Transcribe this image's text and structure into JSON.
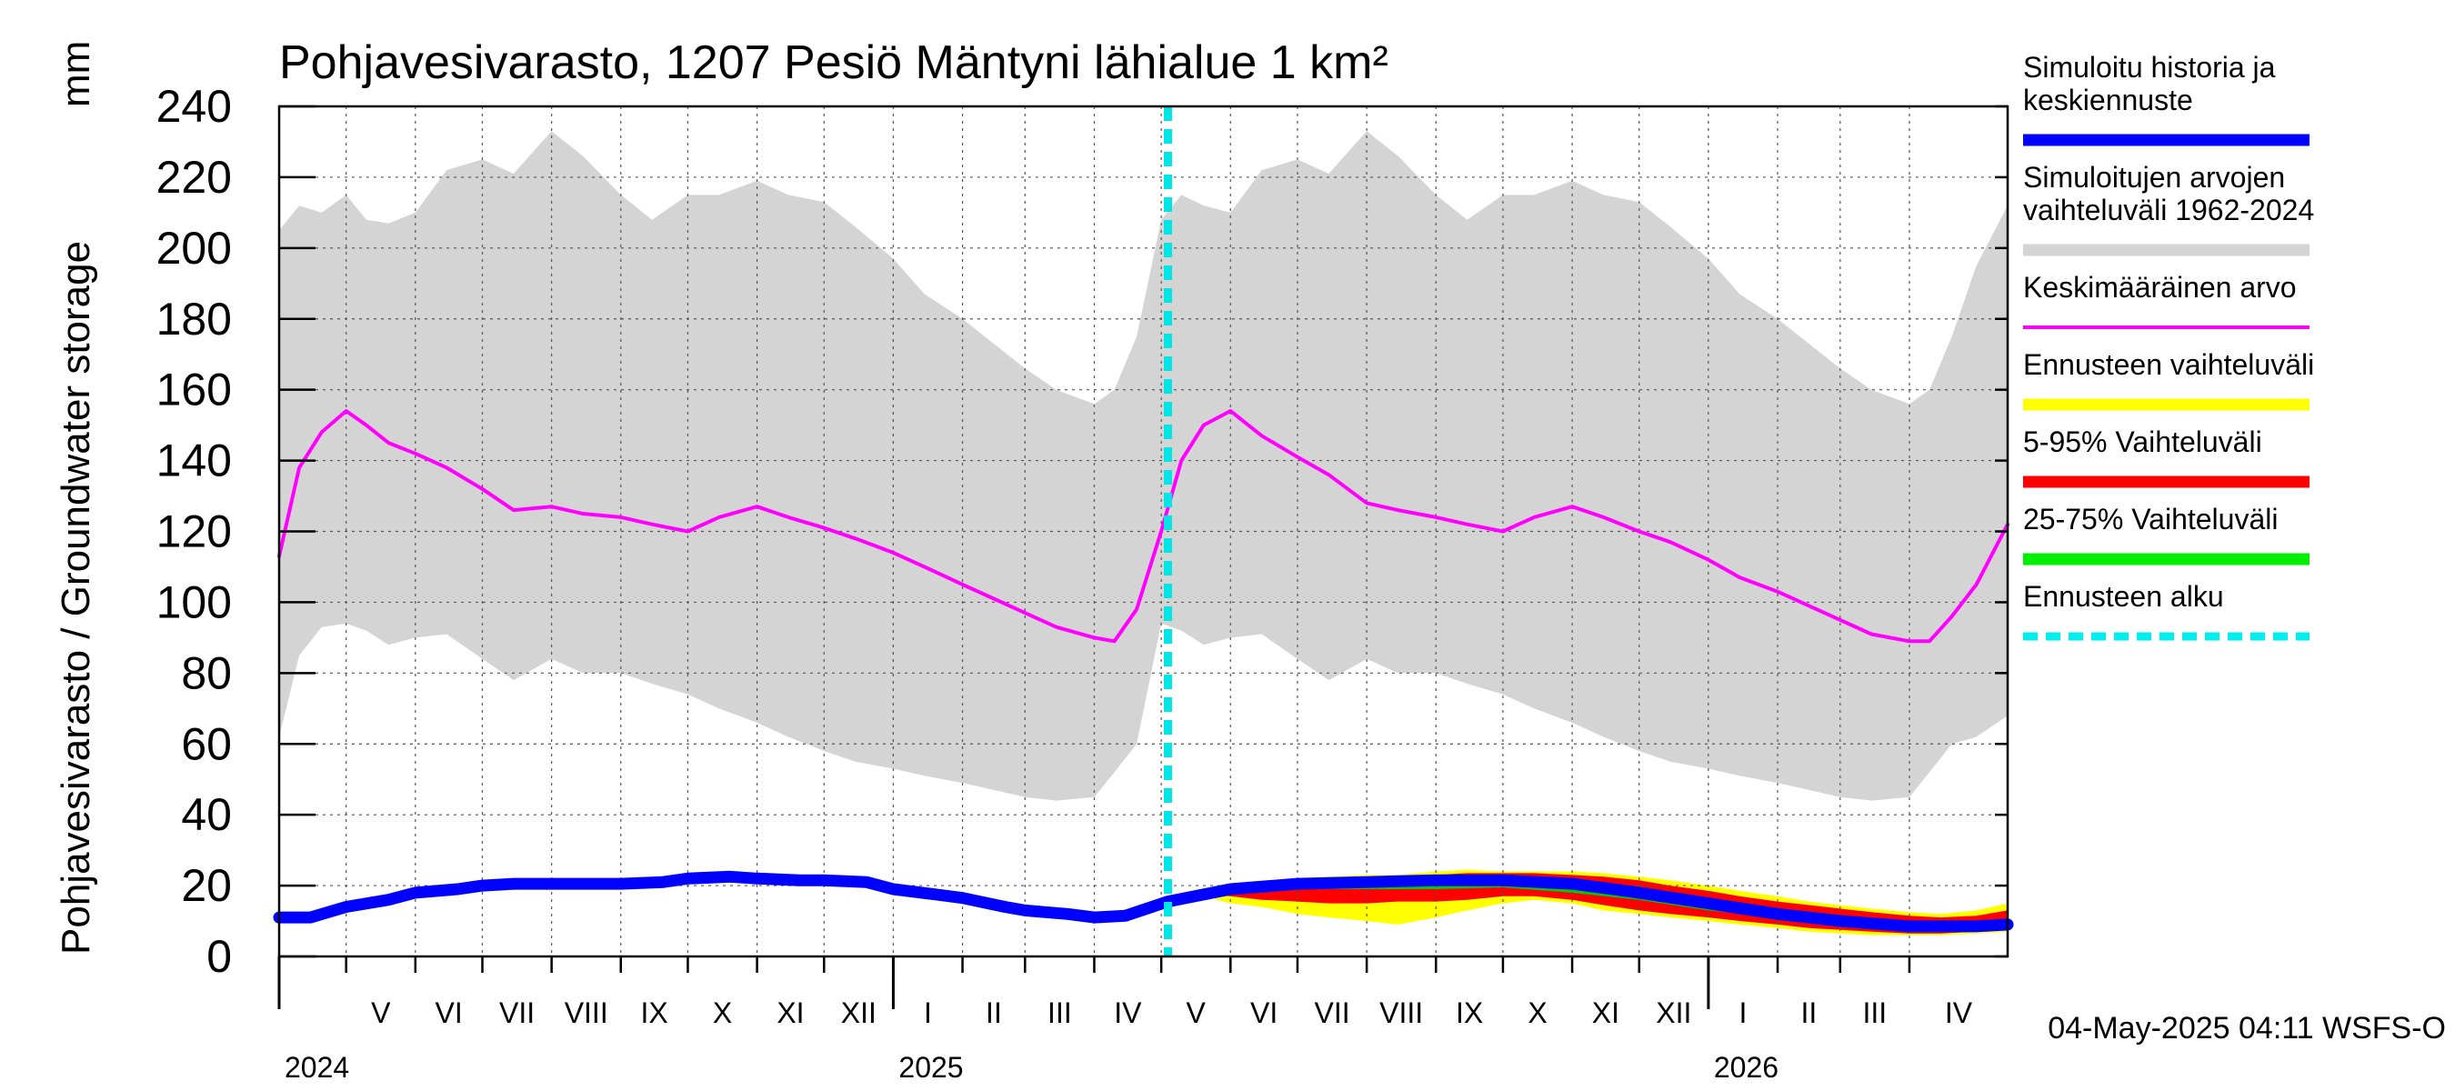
{
  "chart_data": {
    "type": "area",
    "title": "Pohjavesivarasto, 1207 Pesiö Mäntyni lähialue 1 km²",
    "ylabel": "Pohjavesivarasto / Groundwater storage",
    "yunit": "mm",
    "ylim": [
      0,
      240
    ],
    "yticks": [
      0,
      20,
      40,
      60,
      80,
      100,
      120,
      140,
      160,
      180,
      200,
      220,
      240
    ],
    "xlim": [
      "2024-04-01",
      "2026-05-15"
    ],
    "grid": true,
    "legend_position": "right",
    "month_labels": [
      {
        "label": "V",
        "date": "2024-05-01"
      },
      {
        "label": "VI",
        "date": "2024-06-01"
      },
      {
        "label": "VII",
        "date": "2024-07-01"
      },
      {
        "label": "VIII",
        "date": "2024-08-01"
      },
      {
        "label": "IX",
        "date": "2024-09-01"
      },
      {
        "label": "X",
        "date": "2024-10-01"
      },
      {
        "label": "XI",
        "date": "2024-11-01"
      },
      {
        "label": "XII",
        "date": "2024-12-01"
      },
      {
        "label": "I",
        "date": "2025-01-01"
      },
      {
        "label": "II",
        "date": "2025-02-01"
      },
      {
        "label": "III",
        "date": "2025-03-01"
      },
      {
        "label": "IV",
        "date": "2025-04-01"
      },
      {
        "label": "V",
        "date": "2025-05-01"
      },
      {
        "label": "VI",
        "date": "2025-06-01"
      },
      {
        "label": "VII",
        "date": "2025-07-01"
      },
      {
        "label": "VIII",
        "date": "2025-08-01"
      },
      {
        "label": "IX",
        "date": "2025-09-01"
      },
      {
        "label": "X",
        "date": "2025-10-01"
      },
      {
        "label": "XI",
        "date": "2025-11-01"
      },
      {
        "label": "XII",
        "date": "2025-12-01"
      },
      {
        "label": "I",
        "date": "2026-01-01"
      },
      {
        "label": "II",
        "date": "2026-02-01"
      },
      {
        "label": "III",
        "date": "2026-03-01"
      },
      {
        "label": "IV",
        "date": "2026-04-01"
      }
    ],
    "year_labels": [
      {
        "label": "2024",
        "date": "2024-04-01"
      },
      {
        "label": "2025",
        "date": "2025-01-01"
      },
      {
        "label": "2026",
        "date": "2026-01-01"
      }
    ],
    "forecast_start": "2025-05-04",
    "series": [
      {
        "name": "Simuloitujen arvojen vaihteluväli 1962-2024",
        "kind": "band",
        "color": "#d4d4d4",
        "x": [
          "2024-04-01",
          "2024-04-10",
          "2024-04-20",
          "2024-05-01",
          "2024-05-10",
          "2024-05-20",
          "2024-06-01",
          "2024-06-15",
          "2024-07-01",
          "2024-07-15",
          "2024-08-01",
          "2024-08-15",
          "2024-09-01",
          "2024-09-15",
          "2024-10-01",
          "2024-10-15",
          "2024-11-01",
          "2024-11-15",
          "2024-12-01",
          "2024-12-15",
          "2025-01-01",
          "2025-01-15",
          "2025-02-01",
          "2025-02-15",
          "2025-03-01",
          "2025-03-15",
          "2025-04-01",
          "2025-04-10",
          "2025-04-20",
          "2025-05-01",
          "2025-05-10",
          "2025-05-20",
          "2025-06-01",
          "2025-06-15",
          "2025-07-01",
          "2025-07-15",
          "2025-08-01",
          "2025-08-15",
          "2025-09-01",
          "2025-09-15",
          "2025-10-01",
          "2025-10-15",
          "2025-11-01",
          "2025-11-15",
          "2025-12-01",
          "2025-12-15",
          "2026-01-01",
          "2026-01-15",
          "2026-02-01",
          "2026-02-15",
          "2026-03-01",
          "2026-03-15",
          "2026-04-01",
          "2026-04-10",
          "2026-04-20",
          "2026-05-01",
          "2026-05-15"
        ],
        "upper": [
          205,
          212,
          210,
          215,
          208,
          207,
          210,
          222,
          225,
          221,
          233,
          226,
          215,
          208,
          215,
          215,
          219,
          215,
          213,
          206,
          197,
          187,
          180,
          173,
          166,
          160,
          156,
          160,
          175,
          208,
          215,
          212,
          210,
          222,
          225,
          221,
          233,
          226,
          215,
          208,
          215,
          215,
          219,
          215,
          213,
          206,
          197,
          187,
          180,
          173,
          166,
          160,
          156,
          160,
          175,
          195,
          212
        ],
        "lower": [
          62,
          85,
          93,
          94,
          92,
          88,
          90,
          91,
          84,
          78,
          84,
          80,
          80,
          77,
          74,
          70,
          66,
          62,
          58,
          55,
          53,
          51,
          49,
          47,
          45,
          44,
          45,
          52,
          60,
          94,
          92,
          88,
          90,
          91,
          84,
          78,
          84,
          80,
          80,
          77,
          74,
          70,
          66,
          62,
          58,
          55,
          53,
          51,
          49,
          47,
          45,
          44,
          45,
          52,
          60,
          62,
          68
        ]
      },
      {
        "name": "Keskimääräinen arvo",
        "kind": "line",
        "color": "#ff00ff",
        "x": [
          "2024-04-01",
          "2024-04-10",
          "2024-04-20",
          "2024-05-01",
          "2024-05-10",
          "2024-05-20",
          "2024-06-01",
          "2024-06-15",
          "2024-07-01",
          "2024-07-15",
          "2024-08-01",
          "2024-08-15",
          "2024-09-01",
          "2024-09-15",
          "2024-10-01",
          "2024-10-15",
          "2024-11-01",
          "2024-11-15",
          "2024-12-01",
          "2024-12-15",
          "2025-01-01",
          "2025-01-15",
          "2025-02-01",
          "2025-02-15",
          "2025-03-01",
          "2025-03-15",
          "2025-04-01",
          "2025-04-10",
          "2025-04-20",
          "2025-05-01",
          "2025-05-10",
          "2025-05-20",
          "2025-06-01",
          "2025-06-15",
          "2025-07-01",
          "2025-07-15",
          "2025-08-01",
          "2025-08-15",
          "2025-09-01",
          "2025-09-15",
          "2025-10-01",
          "2025-10-15",
          "2025-11-01",
          "2025-11-15",
          "2025-12-01",
          "2025-12-15",
          "2026-01-01",
          "2026-01-15",
          "2026-02-01",
          "2026-02-15",
          "2026-03-01",
          "2026-03-15",
          "2026-04-01",
          "2026-04-10",
          "2026-04-20",
          "2026-05-01",
          "2026-05-15"
        ],
        "values": [
          113,
          138,
          148,
          154,
          150,
          145,
          142,
          138,
          132,
          126,
          127,
          125,
          124,
          122,
          120,
          124,
          127,
          124,
          121,
          118,
          114,
          110,
          105,
          101,
          97,
          93,
          90,
          89,
          98,
          120,
          140,
          150,
          154,
          147,
          141,
          136,
          128,
          126,
          124,
          122,
          120,
          124,
          127,
          124,
          120,
          117,
          112,
          107,
          103,
          99,
          95,
          91,
          89,
          89,
          96,
          105,
          122
        ]
      },
      {
        "name": "Ennusteen vaihteluväli",
        "kind": "band",
        "color": "#ffff00",
        "x": [
          "2025-05-04",
          "2025-05-20",
          "2025-06-01",
          "2025-06-15",
          "2025-07-01",
          "2025-07-15",
          "2025-08-01",
          "2025-08-15",
          "2025-09-01",
          "2025-09-15",
          "2025-10-01",
          "2025-10-15",
          "2025-11-01",
          "2025-11-15",
          "2025-12-01",
          "2025-12-15",
          "2026-01-01",
          "2026-01-15",
          "2026-02-01",
          "2026-02-15",
          "2026-03-01",
          "2026-03-15",
          "2026-04-01",
          "2026-04-15",
          "2026-05-01",
          "2026-05-15"
        ],
        "upper": [
          16,
          18,
          20,
          21,
          22,
          22.5,
          23,
          23,
          24,
          24.5,
          24,
          24,
          24,
          23.5,
          22.5,
          21.5,
          20,
          18.5,
          17,
          15.5,
          14.5,
          13.5,
          12.5,
          12,
          13,
          15
        ],
        "lower": [
          16,
          17,
          15,
          14,
          12,
          11,
          10,
          9,
          11,
          13,
          15,
          16,
          15,
          13,
          12,
          11,
          10,
          9,
          8,
          7,
          6.5,
          6,
          6,
          6,
          6.5,
          7
        ]
      },
      {
        "name": "5-95% Vaihteluväli",
        "kind": "band",
        "color": "#ff0000",
        "x": [
          "2025-05-04",
          "2025-05-20",
          "2025-06-01",
          "2025-06-15",
          "2025-07-01",
          "2025-07-15",
          "2025-08-01",
          "2025-08-15",
          "2025-09-01",
          "2025-09-15",
          "2025-10-01",
          "2025-10-15",
          "2025-11-01",
          "2025-11-15",
          "2025-12-01",
          "2025-12-15",
          "2026-01-01",
          "2026-01-15",
          "2026-02-01",
          "2026-02-15",
          "2026-03-01",
          "2026-03-15",
          "2026-04-01",
          "2026-04-15",
          "2026-05-01",
          "2026-05-15"
        ],
        "upper": [
          16,
          18,
          20,
          21,
          21.5,
          22,
          22.5,
          22.5,
          23,
          23.5,
          23.5,
          23.5,
          23,
          22.5,
          21.5,
          20,
          18.5,
          17,
          15.5,
          14.5,
          13.5,
          12.5,
          11.5,
          11,
          11.5,
          13
        ],
        "lower": [
          16,
          17.5,
          17,
          16,
          15.5,
          15,
          15,
          15.5,
          15.5,
          16,
          17,
          17,
          16,
          14.5,
          13,
          12,
          11,
          10,
          9,
          8,
          7.5,
          7,
          6.5,
          6.5,
          7,
          7.5
        ]
      },
      {
        "name": "25-75% Vaihteluväli",
        "kind": "band",
        "color": "#00cc00",
        "x": [
          "2025-05-04",
          "2025-06-01",
          "2025-07-01",
          "2025-08-01",
          "2025-09-01",
          "2025-10-01",
          "2025-11-01",
          "2025-12-01",
          "2026-01-01",
          "2026-02-01",
          "2026-03-01",
          "2026-04-01",
          "2026-05-01",
          "2026-05-15"
        ],
        "upper": [
          16,
          19.5,
          21,
          21.5,
          22,
          22,
          21,
          19,
          16,
          13,
          11,
          9.5,
          9.5,
          10
        ],
        "lower": [
          16,
          18.5,
          19,
          19,
          19,
          19.5,
          18,
          16,
          13,
          11,
          9,
          8,
          8,
          8.5
        ]
      },
      {
        "name": "Simuloitu historia ja keskiennuste",
        "kind": "line",
        "color": "#0000ff",
        "x": [
          "2024-04-01",
          "2024-04-15",
          "2024-05-01",
          "2024-05-20",
          "2024-06-01",
          "2024-06-20",
          "2024-07-01",
          "2024-07-15",
          "2024-08-01",
          "2024-08-20",
          "2024-09-01",
          "2024-09-20",
          "2024-10-01",
          "2024-10-20",
          "2024-11-01",
          "2024-11-20",
          "2024-12-01",
          "2024-12-20",
          "2025-01-01",
          "2025-01-20",
          "2025-02-01",
          "2025-02-20",
          "2025-03-01",
          "2025-03-20",
          "2025-04-01",
          "2025-04-15",
          "2025-05-04",
          "2025-06-01",
          "2025-07-01",
          "2025-08-01",
          "2025-09-01",
          "2025-10-01",
          "2025-11-01",
          "2025-12-01",
          "2026-01-01",
          "2026-02-01",
          "2026-03-01",
          "2026-04-01",
          "2026-05-01",
          "2026-05-15"
        ],
        "values": [
          11,
          11,
          14,
          16,
          18,
          19,
          20,
          20.5,
          20.5,
          20.5,
          20.5,
          21,
          22,
          22.5,
          22,
          21.5,
          21.5,
          21,
          19,
          17.5,
          16.5,
          14,
          13,
          12,
          11,
          11.5,
          15.5,
          19,
          20.5,
          21,
          21.5,
          21.5,
          20.5,
          18,
          15,
          12,
          10,
          8.5,
          8.5,
          9
        ]
      }
    ],
    "legend": [
      {
        "label": "Simuloitu historia ja keskiennuste",
        "color": "#0000ff",
        "style": "line"
      },
      {
        "label": "Simuloitujen arvojen vaihteluväli 1962-2024",
        "color": "#d4d4d4",
        "style": "line"
      },
      {
        "label": "Keskimääräinen arvo",
        "color": "#ff00ff",
        "style": "thin"
      },
      {
        "label": "Ennusteen vaihteluväli",
        "color": "#ffff00",
        "style": "line"
      },
      {
        "label": "5-95% Vaihteluväli",
        "color": "#ff0000",
        "style": "line"
      },
      {
        "label": "25-75% Vaihteluväli",
        "color": "#00ee00",
        "style": "line"
      },
      {
        "label": "Ennusteen alku",
        "color": "#00eeee",
        "style": "dashed"
      }
    ],
    "footer": "04-May-2025 04:11 WSFS-O"
  }
}
